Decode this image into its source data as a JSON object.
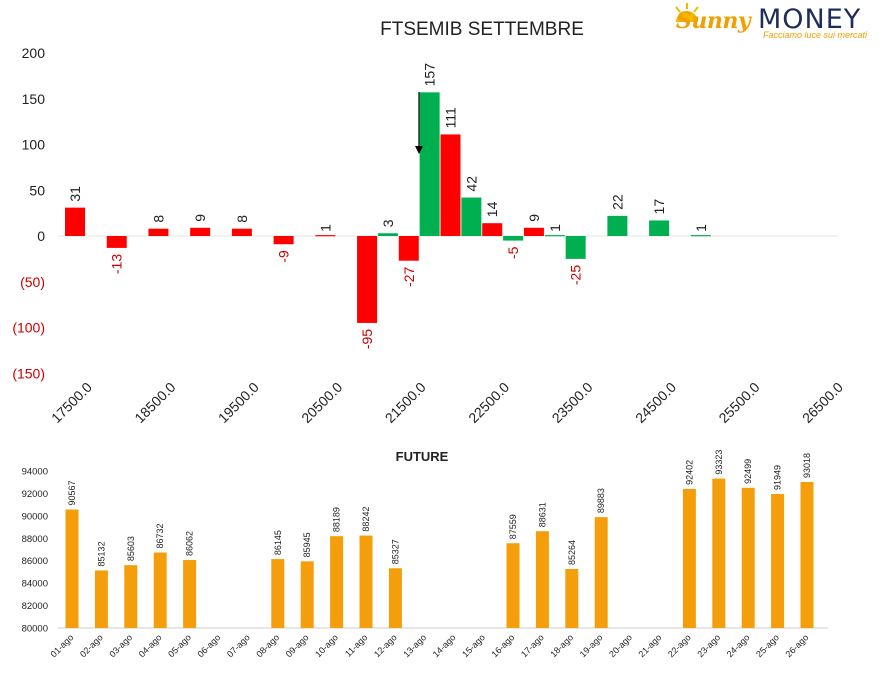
{
  "logo": {
    "brand_part1": "Sunny",
    "brand_part2": "MONEY",
    "tagline": "Facciamo luce sui mercati"
  },
  "colors": {
    "positive": "#00b050",
    "negative": "#ff0000",
    "future_bar": "#f59e0b",
    "neg_label": "#cc0000",
    "text": "#222222"
  },
  "chart_data": [
    {
      "type": "bar",
      "title": "FTSEMIB SETTEMBRE",
      "ylim": [
        -150,
        200
      ],
      "y_ticks": [
        {
          "value": 200,
          "label": "200"
        },
        {
          "value": 150,
          "label": "150"
        },
        {
          "value": 100,
          "label": "100"
        },
        {
          "value": 50,
          "label": "50"
        },
        {
          "value": 0,
          "label": "0"
        },
        {
          "value": -50,
          "label": "(50)"
        },
        {
          "value": -100,
          "label": "(100)"
        },
        {
          "value": -150,
          "label": "(150)"
        }
      ],
      "x_ticks": [
        "17500.0",
        "18500.0",
        "19500.0",
        "20500.0",
        "21500.0",
        "22500.0",
        "23500.0",
        "24500.0",
        "25500.0",
        "26500.0"
      ],
      "x_range": [
        17500,
        26500
      ],
      "annotation": "arrow pointing down at strike 21750",
      "series": [
        {
          "values": [
            {
              "strike": 17500,
              "value": 31,
              "color": "red"
            },
            {
              "strike": 18000,
              "value": -13,
              "color": "red"
            },
            {
              "strike": 18500,
              "value": 8,
              "color": "red"
            },
            {
              "strike": 19000,
              "value": 9,
              "color": "red"
            },
            {
              "strike": 19500,
              "value": 8,
              "color": "red"
            },
            {
              "strike": 20000,
              "value": -9,
              "color": "red"
            },
            {
              "strike": 20500,
              "value": 1,
              "color": "red"
            },
            {
              "strike": 21000,
              "value": -95,
              "color": "red"
            },
            {
              "strike": 21250,
              "value": 3,
              "color": "green"
            },
            {
              "strike": 21500,
              "value": -27,
              "color": "red"
            },
            {
              "strike": 21750,
              "value": 157,
              "color": "green"
            },
            {
              "strike": 22000,
              "value": 111,
              "color": "red"
            },
            {
              "strike": 22250,
              "value": 42,
              "color": "green"
            },
            {
              "strike": 22500,
              "value": 14,
              "color": "red"
            },
            {
              "strike": 22750,
              "value": -5,
              "color": "green"
            },
            {
              "strike": 23000,
              "value": 9,
              "color": "red"
            },
            {
              "strike": 23250,
              "value": 1,
              "color": "green"
            },
            {
              "strike": 23500,
              "value": -25,
              "color": "green"
            },
            {
              "strike": 24000,
              "value": 22,
              "color": "green"
            },
            {
              "strike": 24500,
              "value": 17,
              "color": "green"
            },
            {
              "strike": 25000,
              "value": 1,
              "color": "green"
            }
          ]
        }
      ]
    },
    {
      "type": "bar",
      "title": "FUTURE",
      "ylim": [
        80000,
        94000
      ],
      "y_ticks": [
        "80000",
        "82000",
        "84000",
        "86000",
        "88000",
        "90000",
        "92000",
        "94000"
      ],
      "categories": [
        "01-ago",
        "02-ago",
        "03-ago",
        "04-ago",
        "05-ago",
        "06-ago",
        "07-ago",
        "08-ago",
        "09-ago",
        "10-ago",
        "11-ago",
        "12-ago",
        "13-ago",
        "14-ago",
        "15-ago",
        "16-ago",
        "17-ago",
        "18-ago",
        "19-ago",
        "20-ago",
        "21-ago",
        "22-ago",
        "23-ago",
        "24-ago",
        "25-ago",
        "26-ago"
      ],
      "values": [
        90567,
        85132,
        85603,
        86732,
        86062,
        null,
        null,
        86145,
        85945,
        88189,
        88242,
        85327,
        null,
        null,
        null,
        87559,
        88631,
        85264,
        89883,
        null,
        null,
        92402,
        93323,
        92499,
        91949,
        93018
      ]
    }
  ]
}
